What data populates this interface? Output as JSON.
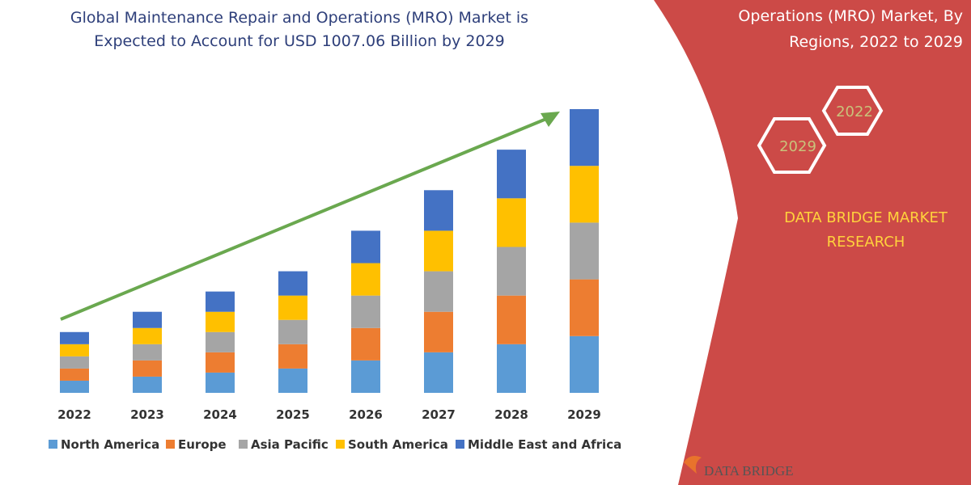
{
  "chart_data": {
    "type": "stacked-bar",
    "title_lines": [
      "Global Maintenance Repair and Operations (MRO) Market is",
      "Expected to Account for USD 1007.06 Billion by 2029"
    ],
    "categories": [
      "2022",
      "2023",
      "2024",
      "2025",
      "2026",
      "2027",
      "2028",
      "2029"
    ],
    "series": [
      {
        "name": "North America",
        "color": "#5b9bd5",
        "values": [
          15,
          20,
          25,
          30,
          40,
          50,
          60,
          70
        ]
      },
      {
        "name": "Europe",
        "color": "#ed7d31",
        "values": [
          15,
          20,
          25,
          30,
          40,
          50,
          60,
          70
        ]
      },
      {
        "name": "Asia Pacific",
        "color": "#a5a5a5",
        "values": [
          15,
          20,
          25,
          30,
          40,
          50,
          60,
          70
        ]
      },
      {
        "name": "South America",
        "color": "#ffc000",
        "values": [
          15,
          20,
          25,
          30,
          40,
          50,
          60,
          70
        ]
      },
      {
        "name": "Middle East and Africa",
        "color": "#4472c4",
        "values": [
          15,
          20,
          25,
          30,
          40,
          50,
          60,
          70
        ]
      }
    ]
  },
  "panel": {
    "title_lines": [
      "Operations (MRO) Market, By",
      "Regions, 2022 to 2029"
    ],
    "hexagons": [
      "2022",
      "2029"
    ],
    "brand_lines": [
      "DATA BRIDGE MARKET",
      "RESEARCH"
    ],
    "logo": "DATA BRIDGE"
  }
}
